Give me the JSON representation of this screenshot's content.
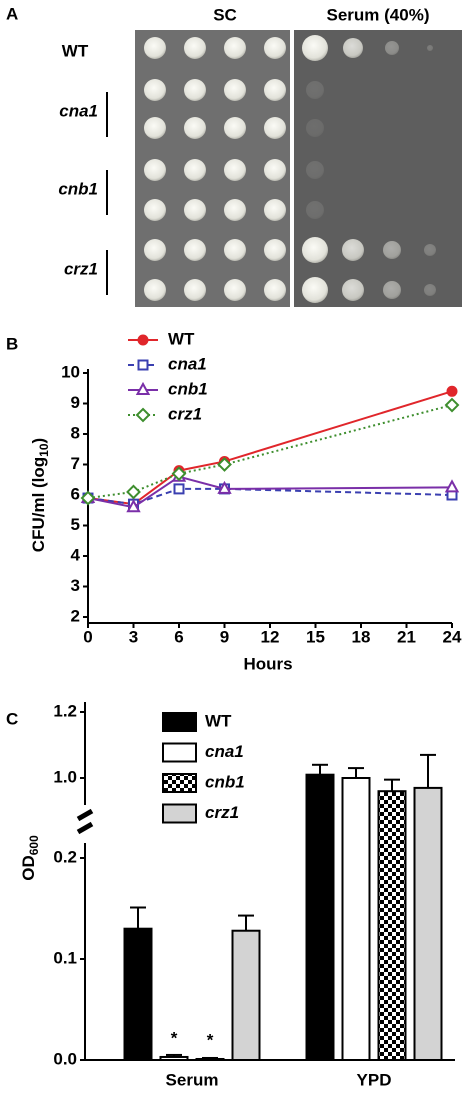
{
  "plate_panel": {
    "label": "A",
    "conditions": [
      "SC",
      "Serum (40%)"
    ],
    "strains": [
      "WT",
      "cna1",
      "cnb1",
      "crz1"
    ]
  },
  "chart_data": [
    {
      "panel": "B",
      "type": "line",
      "x": [
        0,
        3,
        6,
        9,
        24
      ],
      "xlim": [
        0,
        24
      ],
      "xticks": [
        0,
        3,
        6,
        9,
        12,
        15,
        18,
        21,
        24
      ],
      "ylim": [
        2,
        10
      ],
      "yticks": [
        2,
        3,
        4,
        5,
        6,
        7,
        8,
        9,
        10
      ],
      "x_label": "Hours",
      "y_label": [
        "CFU/ml (log",
        "10",
        ")"
      ],
      "series": [
        {
          "name": "WT",
          "color": "#e0262b",
          "marker": "circle",
          "dash": "solid",
          "values": [
            5.9,
            5.7,
            6.8,
            7.1,
            9.4
          ]
        },
        {
          "name": "cna1",
          "color": "#3a3fb0",
          "marker": "square",
          "dash": "dashed",
          "values": [
            5.9,
            5.7,
            6.2,
            6.2,
            6.0
          ]
        },
        {
          "name": "cnb1",
          "color": "#7a2fa8",
          "marker": "triangle",
          "dash": "solid",
          "values": [
            5.9,
            5.6,
            6.6,
            6.2,
            6.25
          ]
        },
        {
          "name": "crz1",
          "color": "#3e8e2e",
          "marker": "diamond",
          "dash": "dotted",
          "values": [
            5.9,
            6.1,
            6.7,
            7.0,
            8.95
          ]
        }
      ]
    },
    {
      "panel": "C",
      "type": "bar",
      "categories": [
        "Serum",
        "YPD"
      ],
      "ylim": [
        0,
        1.2
      ],
      "axis_break": [
        0.2,
        0.93
      ],
      "yticks": [
        {
          "value": 0,
          "label": "0.0"
        },
        0.1,
        0.2,
        {
          "value": 1,
          "label": "1.0"
        },
        1.2
      ],
      "y_label": [
        "OD",
        "600"
      ],
      "series": [
        {
          "name": "WT",
          "color": "#000000",
          "values": [
            0.13,
            1.01
          ],
          "errors": [
            0.021,
            0.03
          ]
        },
        {
          "name": "cna1",
          "color": "#ffffff",
          "values": [
            0.003,
            1.0
          ],
          "errors": [
            0.002,
            0.03
          ],
          "marks": [
            "*",
            null
          ]
        },
        {
          "name": "cnb1",
          "color": "#000000",
          "hatch": "checkerboard",
          "values": [
            0.001,
            0.96
          ],
          "errors": [
            0.001,
            0.035
          ],
          "marks": [
            "*",
            null
          ]
        },
        {
          "name": "crz1",
          "color": "#d3d3d3",
          "values": [
            0.128,
            0.97
          ],
          "errors": [
            0.015,
            0.1
          ]
        }
      ]
    }
  ]
}
